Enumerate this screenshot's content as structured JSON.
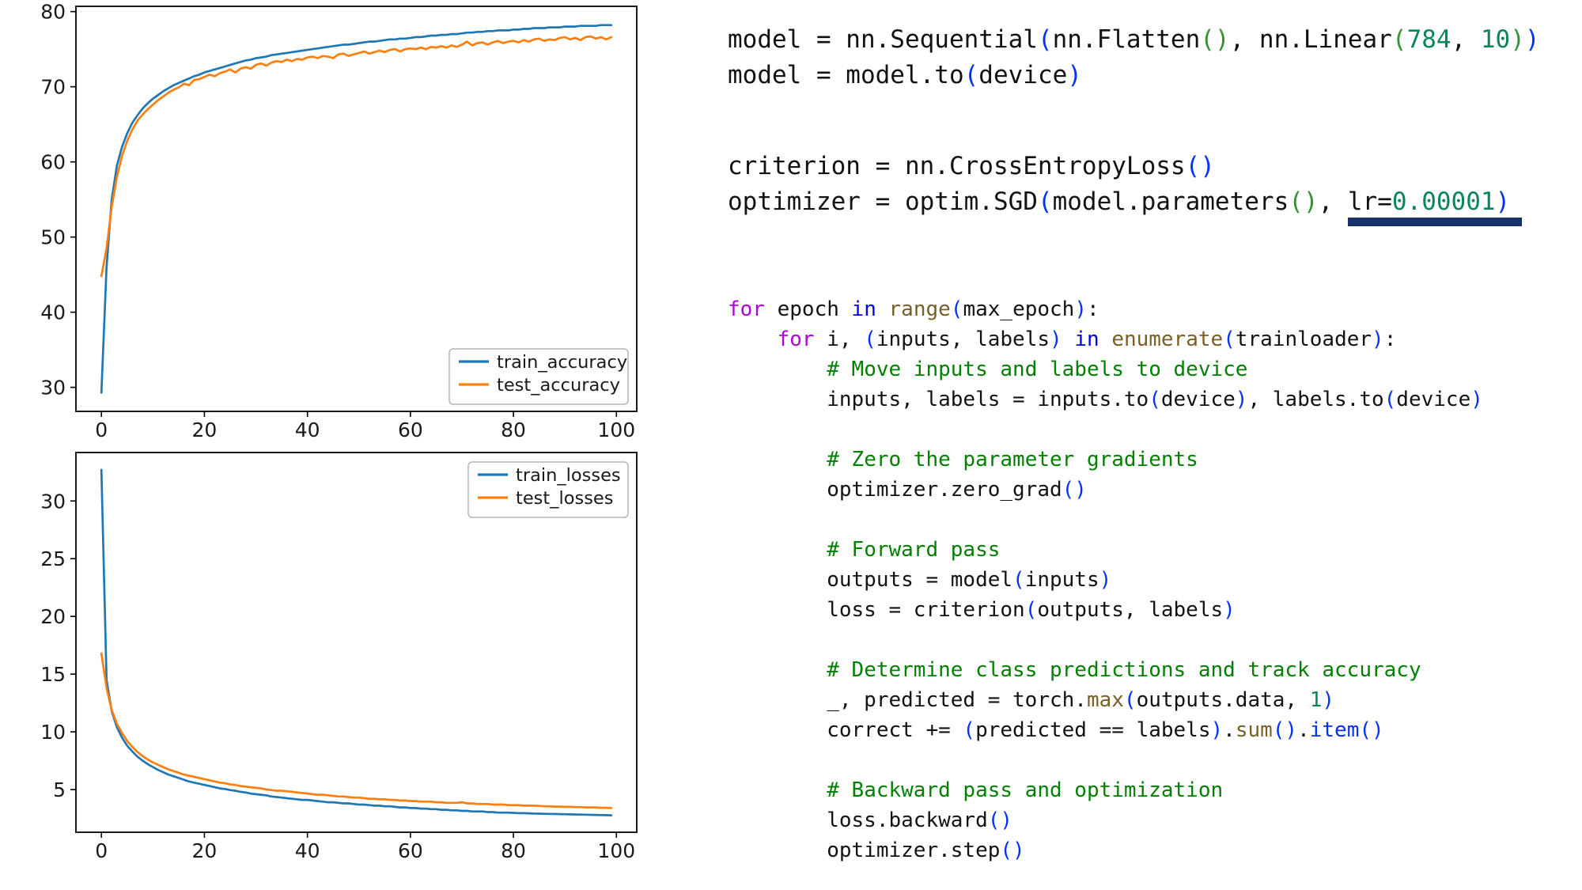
{
  "code": {
    "blocks": [
      {
        "id": "block-model",
        "size": "lg",
        "lines": [
          {
            "segs": [
              {
                "t": "model = nn.Sequential",
                "c": "txt"
              },
              {
                "t": "(",
                "c": "p1"
              },
              {
                "t": "nn.Flatten",
                "c": "txt"
              },
              {
                "t": "()",
                "c": "p2"
              },
              {
                "t": ", nn.Linear",
                "c": "txt"
              },
              {
                "t": "(",
                "c": "p2"
              },
              {
                "t": "784",
                "c": "num"
              },
              {
                "t": ", ",
                "c": "txt"
              },
              {
                "t": "10",
                "c": "num"
              },
              {
                "t": ")",
                "c": "p2"
              },
              {
                "t": ")",
                "c": "p1"
              }
            ]
          },
          {
            "segs": [
              {
                "t": "model = model.to",
                "c": "txt"
              },
              {
                "t": "(",
                "c": "p1"
              },
              {
                "t": "device",
                "c": "txt"
              },
              {
                "t": ")",
                "c": "p1"
              }
            ]
          }
        ]
      },
      {
        "id": "block-optim",
        "size": "lg",
        "lines": [
          {
            "segs": [
              {
                "t": "criterion = nn.CrossEntropyLoss",
                "c": "txt"
              },
              {
                "t": "()",
                "c": "p1"
              }
            ]
          },
          {
            "bar": true,
            "segs": [
              {
                "t": "optimizer = optim.SGD",
                "c": "txt"
              },
              {
                "t": "(",
                "c": "p1"
              },
              {
                "t": "model.parameters",
                "c": "txt"
              },
              {
                "t": "()",
                "c": "p2"
              },
              {
                "t": ", ",
                "c": "txt"
              },
              {
                "t": "lr=",
                "c": "txt u"
              },
              {
                "t": "0.00001",
                "c": "num u"
              },
              {
                "t": ")",
                "c": "p1 u"
              }
            ]
          }
        ]
      },
      {
        "id": "block-loop",
        "size": "sm",
        "lines": [
          {
            "segs": [
              {
                "t": "for",
                "c": "k"
              },
              {
                "t": " epoch ",
                "c": "txt"
              },
              {
                "t": "in",
                "c": "in"
              },
              {
                "t": " ",
                "c": "txt"
              },
              {
                "t": "range",
                "c": "fn"
              },
              {
                "t": "(",
                "c": "p1"
              },
              {
                "t": "max_epoch",
                "c": "txt"
              },
              {
                "t": ")",
                "c": "p1"
              },
              {
                "t": ":",
                "c": "txt"
              }
            ]
          },
          {
            "segs": [
              {
                "t": "    ",
                "c": "txt"
              },
              {
                "t": "for",
                "c": "k"
              },
              {
                "t": " i, ",
                "c": "txt"
              },
              {
                "t": "(",
                "c": "p1"
              },
              {
                "t": "inputs, labels",
                "c": "txt"
              },
              {
                "t": ")",
                "c": "p1"
              },
              {
                "t": " ",
                "c": "txt"
              },
              {
                "t": "in",
                "c": "in"
              },
              {
                "t": " ",
                "c": "txt"
              },
              {
                "t": "enumerate",
                "c": "fn"
              },
              {
                "t": "(",
                "c": "p1"
              },
              {
                "t": "trainloader",
                "c": "txt"
              },
              {
                "t": ")",
                "c": "p1"
              },
              {
                "t": ":",
                "c": "txt"
              }
            ]
          },
          {
            "segs": [
              {
                "t": "        ",
                "c": "txt"
              },
              {
                "t": "# Move inputs and labels to device",
                "c": "com"
              }
            ]
          },
          {
            "segs": [
              {
                "t": "        inputs, labels = inputs.to",
                "c": "txt"
              },
              {
                "t": "(",
                "c": "p1"
              },
              {
                "t": "device",
                "c": "txt"
              },
              {
                "t": ")",
                "c": "p1"
              },
              {
                "t": ", labels.to",
                "c": "txt"
              },
              {
                "t": "(",
                "c": "p1"
              },
              {
                "t": "device",
                "c": "txt"
              },
              {
                "t": ")",
                "c": "p1"
              }
            ]
          },
          {
            "segs": []
          },
          {
            "segs": [
              {
                "t": "        ",
                "c": "txt"
              },
              {
                "t": "# Zero the parameter gradients",
                "c": "com"
              }
            ]
          },
          {
            "segs": [
              {
                "t": "        optimizer.zero_grad",
                "c": "txt"
              },
              {
                "t": "()",
                "c": "p1"
              }
            ]
          },
          {
            "segs": []
          },
          {
            "segs": [
              {
                "t": "        ",
                "c": "txt"
              },
              {
                "t": "# Forward pass",
                "c": "com"
              }
            ]
          },
          {
            "segs": [
              {
                "t": "        outputs = model",
                "c": "txt"
              },
              {
                "t": "(",
                "c": "p1"
              },
              {
                "t": "inputs",
                "c": "txt"
              },
              {
                "t": ")",
                "c": "p1"
              }
            ]
          },
          {
            "segs": [
              {
                "t": "        loss = criterion",
                "c": "txt"
              },
              {
                "t": "(",
                "c": "p1"
              },
              {
                "t": "outputs, labels",
                "c": "txt"
              },
              {
                "t": ")",
                "c": "p1"
              }
            ]
          },
          {
            "segs": []
          },
          {
            "segs": [
              {
                "t": "        ",
                "c": "txt"
              },
              {
                "t": "# Determine class predictions and track accuracy",
                "c": "com"
              }
            ]
          },
          {
            "segs": [
              {
                "t": "        _, predicted = torch.",
                "c": "txt"
              },
              {
                "t": "max",
                "c": "fn"
              },
              {
                "t": "(",
                "c": "p1"
              },
              {
                "t": "outputs.data, ",
                "c": "txt"
              },
              {
                "t": "1",
                "c": "num"
              },
              {
                "t": ")",
                "c": "p1"
              }
            ]
          },
          {
            "segs": [
              {
                "t": "        correct += ",
                "c": "txt"
              },
              {
                "t": "(",
                "c": "p1"
              },
              {
                "t": "predicted == labels",
                "c": "txt"
              },
              {
                "t": ")",
                "c": "p1"
              },
              {
                "t": ".",
                "c": "txt"
              },
              {
                "t": "sum",
                "c": "fn"
              },
              {
                "t": "()",
                "c": "p1"
              },
              {
                "t": ".",
                "c": "txt"
              },
              {
                "t": "item",
                "c": "itm"
              },
              {
                "t": "()",
                "c": "p1"
              }
            ]
          },
          {
            "segs": []
          },
          {
            "segs": [
              {
                "t": "        ",
                "c": "txt"
              },
              {
                "t": "# Backward pass and optimization",
                "c": "com"
              }
            ]
          },
          {
            "segs": [
              {
                "t": "        loss.backward",
                "c": "txt"
              },
              {
                "t": "()",
                "c": "p1"
              }
            ]
          },
          {
            "segs": [
              {
                "t": "        optimizer.step",
                "c": "txt"
              },
              {
                "t": "()",
                "c": "p1"
              }
            ]
          }
        ]
      }
    ],
    "annotation": {
      "type": "thick-underline",
      "target": "lr=0.00001)",
      "color": "#16316d"
    }
  },
  "chart_data": [
    {
      "type": "line",
      "name": "accuracy-curves",
      "title": "",
      "xlabel": "",
      "ylabel": "",
      "x_start": 0,
      "x_step": 1,
      "x_ticks": [
        0,
        20,
        40,
        60,
        80,
        100
      ],
      "y_ticks": [
        30,
        40,
        50,
        60,
        70,
        80
      ],
      "xlim": [
        -4.95,
        103.95
      ],
      "ylim": [
        26.8,
        80.7
      ],
      "grid": false,
      "legend": {
        "position": "lower-right",
        "entries": [
          "train_accuracy",
          "test_accuracy"
        ]
      },
      "series": [
        {
          "name": "train_accuracy",
          "color": "#1f77b4",
          "values": [
            29.3,
            46.0,
            55.0,
            59.5,
            62.0,
            63.8,
            65.2,
            66.2,
            67.1,
            67.8,
            68.4,
            68.9,
            69.4,
            69.8,
            70.2,
            70.5,
            70.8,
            71.1,
            71.4,
            71.6,
            71.9,
            72.1,
            72.3,
            72.5,
            72.7,
            72.9,
            73.1,
            73.3,
            73.5,
            73.6,
            73.8,
            73.9,
            74.0,
            74.2,
            74.3,
            74.4,
            74.5,
            74.6,
            74.7,
            74.8,
            74.9,
            75.0,
            75.1,
            75.2,
            75.3,
            75.4,
            75.5,
            75.6,
            75.6,
            75.7,
            75.8,
            75.9,
            76.0,
            76.0,
            76.1,
            76.2,
            76.3,
            76.3,
            76.4,
            76.4,
            76.5,
            76.6,
            76.6,
            76.7,
            76.8,
            76.8,
            76.9,
            76.9,
            77.0,
            77.0,
            77.1,
            77.2,
            77.2,
            77.3,
            77.3,
            77.4,
            77.4,
            77.5,
            77.5,
            77.5,
            77.6,
            77.6,
            77.7,
            77.7,
            77.8,
            77.8,
            77.8,
            77.9,
            77.9,
            77.9,
            78.0,
            78.0,
            78.0,
            78.1,
            78.1,
            78.1,
            78.1,
            78.2,
            78.2,
            78.2
          ]
        },
        {
          "name": "test_accuracy",
          "color": "#ff7f0e",
          "values": [
            44.8,
            48.5,
            54.0,
            58.0,
            60.8,
            62.8,
            64.3,
            65.5,
            66.3,
            67.0,
            67.6,
            68.2,
            68.7,
            69.2,
            69.6,
            69.9,
            70.4,
            70.2,
            70.9,
            71.0,
            71.3,
            71.6,
            71.4,
            71.8,
            72.0,
            72.3,
            71.9,
            72.4,
            72.6,
            72.4,
            72.9,
            73.1,
            72.8,
            73.2,
            73.4,
            73.3,
            73.6,
            73.4,
            73.7,
            73.6,
            73.9,
            74.0,
            73.8,
            74.1,
            74.0,
            73.8,
            74.3,
            74.4,
            74.1,
            74.3,
            74.5,
            74.7,
            74.4,
            74.6,
            74.8,
            74.6,
            74.9,
            75.0,
            74.7,
            75.0,
            75.1,
            75.0,
            75.2,
            75.0,
            75.3,
            75.2,
            75.4,
            75.2,
            75.5,
            75.3,
            75.6,
            76.0,
            75.5,
            75.8,
            75.9,
            75.6,
            75.9,
            76.1,
            75.8,
            76.0,
            76.1,
            75.9,
            76.2,
            76.0,
            76.3,
            76.4,
            76.1,
            76.3,
            76.2,
            76.5,
            76.6,
            76.3,
            76.5,
            76.2,
            76.6,
            76.7,
            76.4,
            76.6,
            76.3,
            76.6
          ]
        }
      ]
    },
    {
      "type": "line",
      "name": "loss-curves",
      "title": "",
      "xlabel": "",
      "ylabel": "",
      "x_start": 0,
      "x_step": 1,
      "x_ticks": [
        0,
        20,
        40,
        60,
        80,
        100
      ],
      "y_ticks": [
        5,
        10,
        15,
        20,
        25,
        30
      ],
      "xlim": [
        -4.95,
        103.95
      ],
      "ylim": [
        1.3,
        34.2
      ],
      "grid": false,
      "legend": {
        "position": "upper-right",
        "entries": [
          "train_losses",
          "test_losses"
        ]
      },
      "series": [
        {
          "name": "train_losses",
          "color": "#1f77b4",
          "values": [
            32.7,
            14.5,
            11.8,
            10.4,
            9.5,
            8.8,
            8.3,
            7.85,
            7.5,
            7.2,
            6.95,
            6.7,
            6.5,
            6.3,
            6.15,
            6.0,
            5.85,
            5.7,
            5.6,
            5.5,
            5.4,
            5.3,
            5.2,
            5.1,
            5.05,
            4.95,
            4.9,
            4.8,
            4.75,
            4.65,
            4.6,
            4.55,
            4.5,
            4.4,
            4.35,
            4.3,
            4.25,
            4.2,
            4.15,
            4.1,
            4.1,
            4.05,
            4.0,
            3.95,
            3.9,
            3.9,
            3.85,
            3.8,
            3.8,
            3.75,
            3.7,
            3.7,
            3.65,
            3.6,
            3.6,
            3.55,
            3.55,
            3.5,
            3.45,
            3.45,
            3.4,
            3.4,
            3.35,
            3.35,
            3.3,
            3.3,
            3.25,
            3.25,
            3.2,
            3.2,
            3.15,
            3.15,
            3.1,
            3.1,
            3.1,
            3.05,
            3.05,
            3.0,
            3.0,
            3.0,
            2.98,
            2.96,
            2.95,
            2.94,
            2.92,
            2.91,
            2.9,
            2.89,
            2.88,
            2.87,
            2.86,
            2.85,
            2.84,
            2.83,
            2.82,
            2.81,
            2.8,
            2.79,
            2.78,
            2.77
          ]
        },
        {
          "name": "test_losses",
          "color": "#ff7f0e",
          "values": [
            16.8,
            13.8,
            11.9,
            10.7,
            9.9,
            9.2,
            8.7,
            8.25,
            7.9,
            7.6,
            7.35,
            7.15,
            6.95,
            6.75,
            6.6,
            6.45,
            6.3,
            6.2,
            6.1,
            6.0,
            5.9,
            5.8,
            5.7,
            5.6,
            5.55,
            5.45,
            5.4,
            5.3,
            5.25,
            5.2,
            5.15,
            5.1,
            5.0,
            4.95,
            4.9,
            4.9,
            4.85,
            4.8,
            4.75,
            4.7,
            4.65,
            4.6,
            4.55,
            4.55,
            4.5,
            4.45,
            4.4,
            4.4,
            4.35,
            4.3,
            4.3,
            4.25,
            4.2,
            4.2,
            4.15,
            4.15,
            4.1,
            4.1,
            4.05,
            4.05,
            4.0,
            4.0,
            3.95,
            3.95,
            3.95,
            3.9,
            3.9,
            3.85,
            3.85,
            3.85,
            3.9,
            3.8,
            3.8,
            3.75,
            3.75,
            3.75,
            3.7,
            3.7,
            3.7,
            3.65,
            3.65,
            3.65,
            3.6,
            3.6,
            3.6,
            3.58,
            3.55,
            3.55,
            3.52,
            3.52,
            3.5,
            3.5,
            3.48,
            3.48,
            3.45,
            3.45,
            3.45,
            3.42,
            3.42,
            3.4
          ]
        }
      ]
    }
  ]
}
